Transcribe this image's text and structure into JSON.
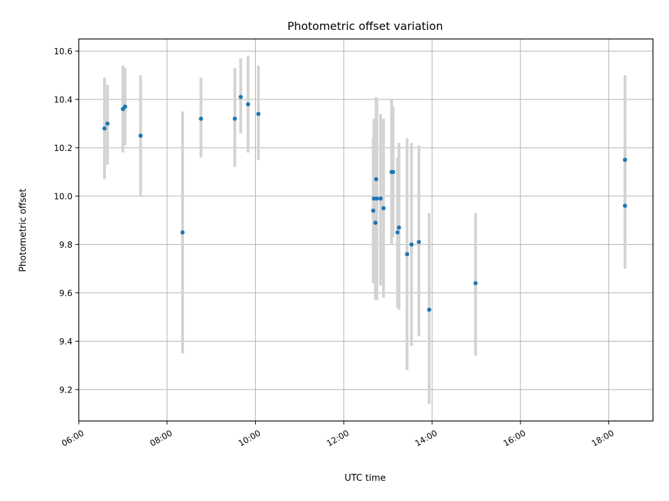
{
  "chart_data": {
    "type": "scatter",
    "title": "Photometric offset variation",
    "xlabel": "UTC time",
    "ylabel": "Photometric offset",
    "x_ticks": [
      "06:00",
      "08:00",
      "10:00",
      "12:00",
      "14:00",
      "16:00",
      "18:00"
    ],
    "y_ticks": [
      "9.2",
      "9.4",
      "9.6",
      "9.8",
      "10.0",
      "10.2",
      "10.4",
      "10.6"
    ],
    "xlim": [
      "06:00",
      "19:00"
    ],
    "ylim": [
      9.07,
      10.65
    ],
    "grid": true,
    "marker_color": "#1f77b4",
    "errorbar_color": "#d3d3d3",
    "points": [
      {
        "t": "06:35",
        "y": 10.28,
        "lo": 10.07,
        "hi": 10.49
      },
      {
        "t": "06:39",
        "y": 10.3,
        "lo": 10.13,
        "hi": 10.46
      },
      {
        "t": "07:00",
        "y": 10.36,
        "lo": 10.18,
        "hi": 10.54
      },
      {
        "t": "07:03",
        "y": 10.37,
        "lo": 10.21,
        "hi": 10.53
      },
      {
        "t": "07:24",
        "y": 10.25,
        "lo": 10.0,
        "hi": 10.5
      },
      {
        "t": "08:21",
        "y": 9.85,
        "lo": 9.35,
        "hi": 10.35
      },
      {
        "t": "08:46",
        "y": 10.32,
        "lo": 10.16,
        "hi": 10.49
      },
      {
        "t": "09:32",
        "y": 10.32,
        "lo": 10.12,
        "hi": 10.53
      },
      {
        "t": "09:40",
        "y": 10.41,
        "lo": 10.26,
        "hi": 10.57
      },
      {
        "t": "09:50",
        "y": 10.38,
        "lo": 10.18,
        "hi": 10.58
      },
      {
        "t": "10:04",
        "y": 10.34,
        "lo": 10.15,
        "hi": 10.54
      },
      {
        "t": "12:40",
        "y": 9.94,
        "lo": 9.64,
        "hi": 10.24
      },
      {
        "t": "12:41",
        "y": 9.99,
        "lo": 9.67,
        "hi": 10.32
      },
      {
        "t": "12:43",
        "y": 9.89,
        "lo": 9.57,
        "hi": 10.21
      },
      {
        "t": "12:44",
        "y": 10.07,
        "lo": 9.74,
        "hi": 10.41
      },
      {
        "t": "12:45",
        "y": 9.99,
        "lo": 9.57,
        "hi": 10.4
      },
      {
        "t": "12:50",
        "y": 9.99,
        "lo": 9.63,
        "hi": 10.34
      },
      {
        "t": "12:54",
        "y": 9.95,
        "lo": 9.58,
        "hi": 10.32
      },
      {
        "t": "13:05",
        "y": 10.1,
        "lo": 9.8,
        "hi": 10.4
      },
      {
        "t": "13:07",
        "y": 10.1,
        "lo": 9.83,
        "hi": 10.37
      },
      {
        "t": "13:13",
        "y": 9.85,
        "lo": 9.54,
        "hi": 10.16
      },
      {
        "t": "13:15",
        "y": 9.87,
        "lo": 9.53,
        "hi": 10.22
      },
      {
        "t": "13:26",
        "y": 9.76,
        "lo": 9.28,
        "hi": 10.24
      },
      {
        "t": "13:32",
        "y": 9.8,
        "lo": 9.38,
        "hi": 10.22
      },
      {
        "t": "13:42",
        "y": 9.81,
        "lo": 9.42,
        "hi": 10.21
      },
      {
        "t": "13:56",
        "y": 9.53,
        "lo": 9.14,
        "hi": 9.93
      },
      {
        "t": "14:59",
        "y": 9.64,
        "lo": 9.34,
        "hi": 9.93
      },
      {
        "t": "18:22",
        "y": 10.15,
        "lo": 9.8,
        "hi": 10.5
      },
      {
        "t": "18:22",
        "y": 9.96,
        "lo": 9.7,
        "hi": 10.23
      }
    ]
  }
}
